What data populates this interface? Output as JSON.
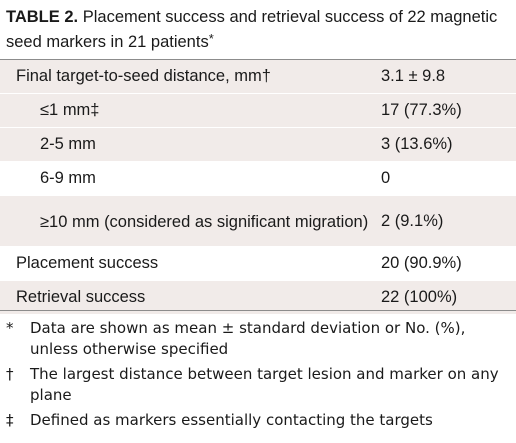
{
  "caption": {
    "label": "TABLE 2.",
    "text": "Placement success and retrieval success of 22 magnetic seed markers in 21 patients",
    "marker": "*"
  },
  "table": {
    "rows": [
      {
        "name": "Final target-to-seed distance, mm†",
        "value": "3.1 ± 9.8"
      },
      {
        "name": "≤1 mm‡",
        "value": "17 (77.3%)"
      },
      {
        "name": "2-5 mm",
        "value": "3 (13.6%)"
      },
      {
        "name": "6-9 mm",
        "value": "0"
      },
      {
        "name": "≥10 mm (considered as significant migration)",
        "value": "2 (9.1%)"
      },
      {
        "name": "Placement success",
        "value": "20 (90.9%)"
      },
      {
        "name": "Retrieval success",
        "value": "22 (100%)"
      }
    ]
  },
  "footnotes": [
    {
      "symbol": "*",
      "text": "Data are shown as mean ± standard deviation or No. (%), unless otherwise specified"
    },
    {
      "symbol": "†",
      "text": "The largest distance between target lesion and marker on any plane"
    },
    {
      "symbol": "‡",
      "text": "Defined as markers essentially contacting the targets"
    }
  ],
  "colors": {
    "row_shade": "#f1ebe9",
    "rule": "#8c8c8c",
    "text": "#1a1a1a"
  }
}
